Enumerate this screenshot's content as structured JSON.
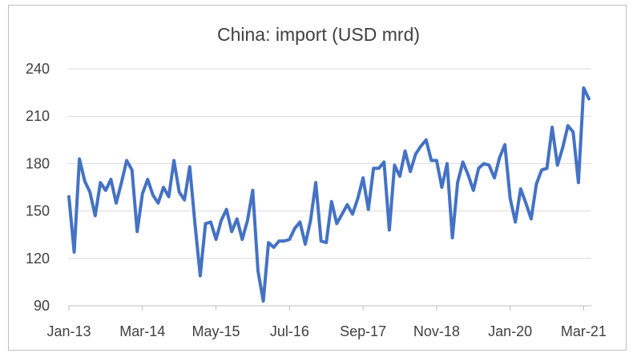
{
  "chart_data": {
    "type": "line",
    "title": "China: import (USD mrd)",
    "xlabel": "",
    "ylabel": "",
    "ylim": [
      90,
      240
    ],
    "yticks": [
      90,
      120,
      150,
      180,
      210,
      240
    ],
    "xtick_labels": [
      "Jan-13",
      "Mar-14",
      "May-15",
      "Jul-16",
      "Sep-17",
      "Nov-18",
      "Jan-20",
      "Mar-21"
    ],
    "grid": true,
    "legend": "none",
    "line_color": "#4472C4",
    "series": [
      {
        "x_start": "Jan-13",
        "frequency": "monthly",
        "values": [
          159,
          124,
          183,
          169,
          162,
          147,
          168,
          163,
          170,
          155,
          168,
          182,
          176,
          137,
          161,
          170,
          160,
          155,
          165,
          159,
          182,
          162,
          157,
          178,
          142,
          109,
          142,
          143,
          132,
          144,
          151,
          137,
          145,
          132,
          144,
          163,
          112,
          93,
          130,
          127,
          131,
          131,
          132,
          139,
          143,
          129,
          144,
          168,
          131,
          130,
          156,
          142,
          148,
          154,
          148,
          158,
          171,
          151,
          177,
          177,
          181,
          138,
          179,
          172,
          188,
          175,
          186,
          191,
          195,
          182,
          182,
          165,
          180,
          133,
          168,
          181,
          173,
          163,
          177,
          180,
          179,
          171,
          184,
          192,
          158,
          143,
          164,
          155,
          145,
          167,
          176,
          177,
          203,
          179,
          190,
          204,
          200,
          168,
          228,
          221
        ]
      }
    ]
  }
}
